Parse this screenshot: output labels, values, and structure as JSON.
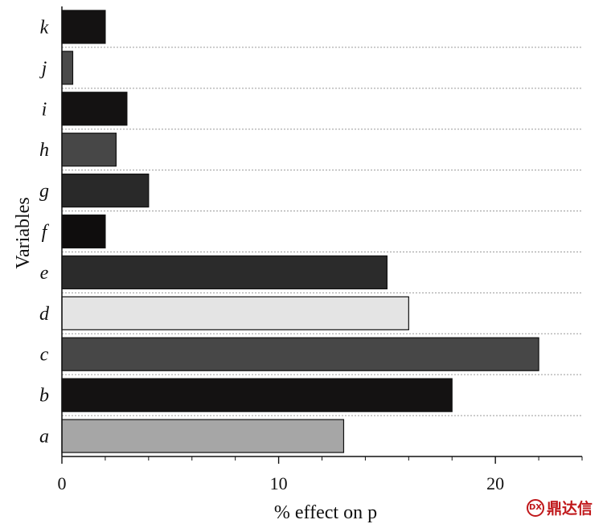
{
  "chart_data": {
    "type": "bar",
    "orientation": "horizontal",
    "categories": [
      "a",
      "b",
      "c",
      "d",
      "e",
      "f",
      "g",
      "h",
      "i",
      "j",
      "k"
    ],
    "values": [
      13,
      18,
      22,
      16,
      15,
      2,
      4,
      2.5,
      3,
      0.5,
      2
    ],
    "bar_colors": [
      "#a6a6a6",
      "#141212",
      "#474747",
      "#e4e4e4",
      "#2b2b2b",
      "#0f0d0d",
      "#292929",
      "#474747",
      "#141212",
      "#4a4a4a",
      "#141212"
    ],
    "xlabel": "% effect on p",
    "ylabel": "Variables",
    "xlim": [
      0,
      24
    ],
    "x_ticks": [
      0,
      10,
      20
    ],
    "grid": "horizontal dotted"
  },
  "watermark": {
    "text": "鼎达信",
    "logo_color": "#c0181b"
  }
}
